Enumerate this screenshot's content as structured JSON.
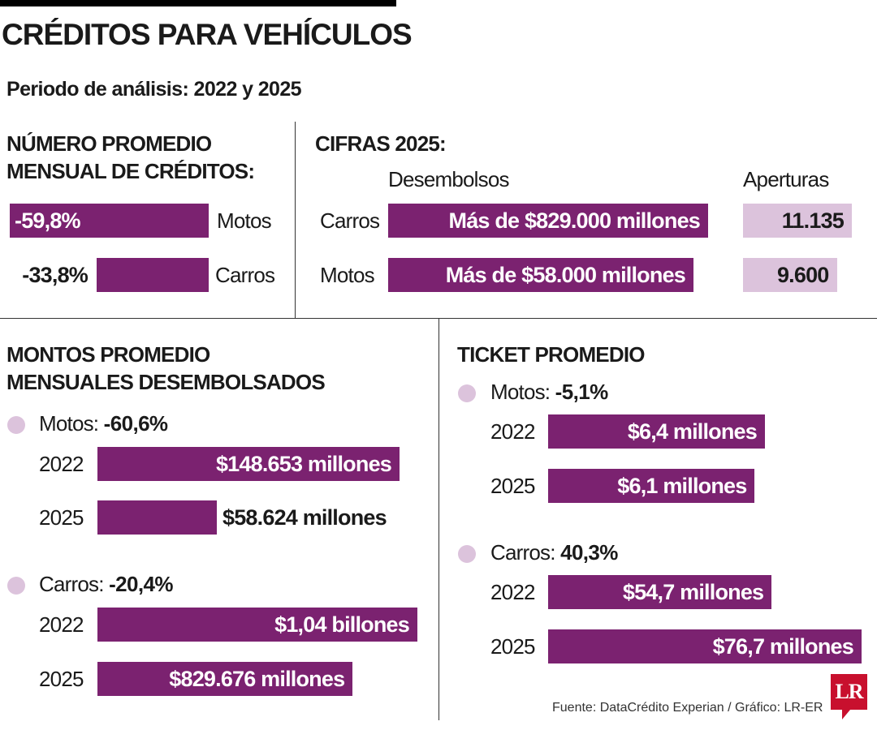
{
  "title": "CRÉDITOS PARA VEHÍCULOS",
  "subtitle": "Periodo de análisis: 2022 y 2025",
  "colors": {
    "bar": "#7b2270",
    "bar_light": "#dcc3dc",
    "logo": "#c8102e"
  },
  "chart_data": [
    {
      "type": "bar",
      "title": "NÚMERO PROMEDIO MENSUAL DE CRÉDITOS:",
      "title_lines": [
        "NÚMERO PROMEDIO",
        "MENSUAL DE CRÉDITOS:"
      ],
      "categories": [
        "Motos",
        "Carros"
      ],
      "values": [
        -59.8,
        -33.8
      ],
      "labels": [
        "-59,8%",
        "-33,8%"
      ]
    },
    {
      "type": "table",
      "title": "CIFRAS 2025:",
      "columns": [
        "Desembolsos",
        "Aperturas"
      ],
      "rows": [
        {
          "category": "Carros",
          "desembolsos": "Más de $829.000 millones",
          "aperturas": "11.135",
          "aperturas_value": 11135
        },
        {
          "category": "Motos",
          "desembolsos": "Más de $58.000 millones",
          "aperturas": "9.600",
          "aperturas_value": 9600
        }
      ]
    },
    {
      "type": "bar",
      "title": "MONTOS PROMEDIO MENSUALES DESEMBOLSADOS",
      "title_lines": [
        "MONTOS PROMEDIO",
        "MENSUALES DESEMBOLSADOS"
      ],
      "groups": [
        {
          "name": "Motos:",
          "change": "-60,6%",
          "categories": [
            "2022",
            "2025"
          ],
          "values": [
            148653,
            58624
          ],
          "labels": [
            "$148.653 millones",
            "$58.624 millones"
          ],
          "unit": "millones"
        },
        {
          "name": "Carros:",
          "change": "-20,4%",
          "categories": [
            "2022",
            "2025"
          ],
          "values": [
            1040000,
            829676
          ],
          "labels": [
            "$1,04 billones",
            "$829.676 millones"
          ],
          "unit": "millones"
        }
      ]
    },
    {
      "type": "bar",
      "title": "TICKET PROMEDIO",
      "groups": [
        {
          "name": "Motos:",
          "change": "-5,1%",
          "categories": [
            "2022",
            "2025"
          ],
          "values": [
            6.4,
            6.1
          ],
          "labels": [
            "$6,4 millones",
            "$6,1 millones"
          ],
          "unit": "millones"
        },
        {
          "name": "Carros:",
          "change": "40,3%",
          "categories": [
            "2022",
            "2025"
          ],
          "values": [
            54.7,
            76.7
          ],
          "labels": [
            "$54,7 millones",
            "$76,7 millones"
          ],
          "unit": "millones"
        }
      ]
    }
  ],
  "source": "Fuente: DataCrédito Experian / Gráfico: LR-ER",
  "logo": "LR"
}
